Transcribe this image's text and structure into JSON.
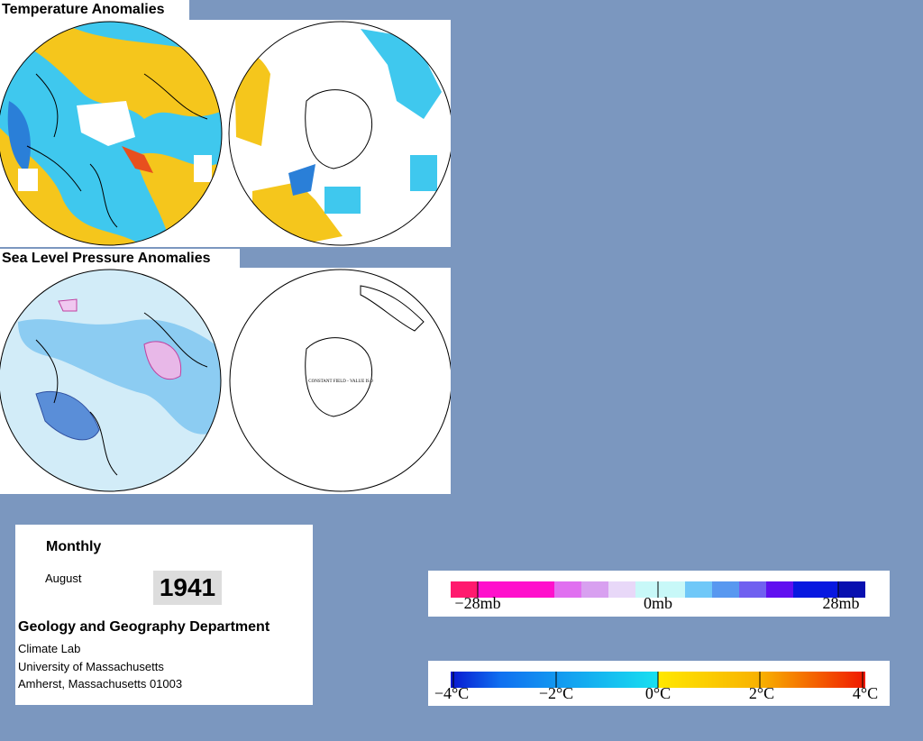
{
  "panels": [
    {
      "title": "Temperature Anomalies"
    },
    {
      "title": "Sea Level Pressure Anomalies",
      "note": "CONSTANT FIELD - VALUE IS 0"
    }
  ],
  "info": {
    "period": "Monthly",
    "month": "August",
    "year": "1941",
    "department": "Geology and Geography Department",
    "lines": [
      "Climate Lab",
      "University of Massachusetts",
      "Amherst, Massachusetts 01003"
    ]
  },
  "legends": [
    {
      "labels": [
        "−28mb",
        "0mb",
        "28mb"
      ]
    },
    {
      "labels": [
        "−4°C",
        "−2°C",
        "0°C",
        "2°C",
        "4°C"
      ]
    }
  ]
}
